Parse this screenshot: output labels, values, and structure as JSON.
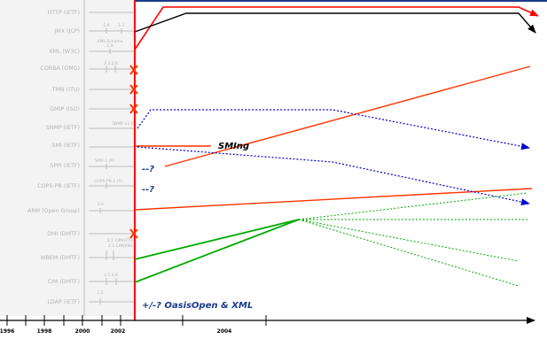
{
  "standards": [
    {
      "id": "http",
      "label": "HTTP (IETF)"
    },
    {
      "id": "jmx",
      "label": "JMX (JCP)"
    },
    {
      "id": "xml",
      "label": "XML (W3C)"
    },
    {
      "id": "corba",
      "label": "CORBA (OMG)"
    },
    {
      "id": "tmn",
      "label": "TMN (ITU)"
    },
    {
      "id": "gmip",
      "label": "GMIP (ISO)"
    },
    {
      "id": "snmp",
      "label": "SNMP (IETF)"
    },
    {
      "id": "smi",
      "label": "SMI (IETF)"
    },
    {
      "id": "spp",
      "label": "SPPI (IETF)"
    },
    {
      "id": "cops",
      "label": "COPS-PR (IETF)"
    },
    {
      "id": "arm",
      "label": "ARM (Open Group)"
    },
    {
      "id": "dmi",
      "label": "DMI (DMTF)"
    },
    {
      "id": "wbem",
      "label": "WBEM (DMTF)"
    },
    {
      "id": "cim",
      "label": "CIM (DMTF)"
    },
    {
      "id": "ldap",
      "label": "LDAP (IETF)"
    }
  ],
  "version_labels": {
    "jmx_a": "1.0",
    "jmx_b": "1.1",
    "xml_schema_1": "XML Schema",
    "xml_schema_2": "1.0",
    "corba": "2.3  2.6",
    "snmp": "SNMP v3 (S)",
    "spp": "SPPI-1 (P)",
    "cops": "COPS-PR-1 (P)",
    "arm": "3.0",
    "wbem_1": "2.1 CIM/HTTP",
    "wbem_2": "2.2 CIM/XML",
    "cim": "2.5  2.6",
    "ldap": "2.2"
  },
  "years": [
    "1996",
    "1998",
    "2000",
    "2002",
    "2004"
  ],
  "annotations": {
    "sming": "SMIng",
    "spp_q": "--?",
    "cops_q": "--?",
    "oasis": "+/-? OasisOpen & XML"
  },
  "colors": {
    "red": "#ff0000",
    "black": "#000000",
    "blue": "#0000cc",
    "green": "#00aa00",
    "gray": "#b4b4b4",
    "navy": "#1b3a8c"
  }
}
